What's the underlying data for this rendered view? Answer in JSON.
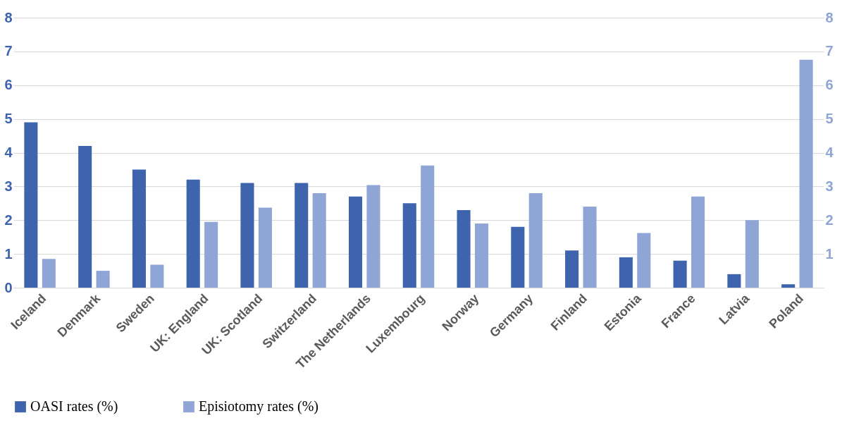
{
  "chart_data": {
    "type": "bar",
    "categories": [
      "Iceland",
      "Denmark",
      "Sweden",
      "UK: England",
      "UK: Scotland",
      "Switzerland",
      "The Netherlands",
      "Luxembourg",
      "Norway",
      "Germany",
      "Finland",
      "Estonia",
      "France",
      "Latvia",
      "Poland"
    ],
    "series": [
      {
        "name": "OASI rates (%)",
        "color": "#3f64ae",
        "values": [
          4.9,
          4.2,
          3.5,
          3.2,
          3.1,
          3.1,
          2.7,
          2.5,
          2.3,
          1.8,
          1.1,
          0.9,
          0.8,
          0.4,
          0.1
        ]
      },
      {
        "name": "Episiotomy rates (%)",
        "color": "#8fa5d6",
        "axis": "y2",
        "values": [
          0.85,
          0.5,
          0.68,
          1.95,
          2.37,
          2.8,
          3.04,
          3.62,
          1.9,
          2.8,
          2.4,
          1.62,
          2.7,
          2.0,
          6.75
        ]
      }
    ],
    "ylim": [
      0,
      8
    ],
    "yticks": [
      0,
      1,
      2,
      3,
      4,
      5,
      6,
      7,
      8
    ],
    "y2lim": [
      0,
      8
    ],
    "y2ticks": [
      1,
      2,
      3,
      4,
      5,
      6,
      7,
      8
    ],
    "grid": "y",
    "legend": "bottom"
  }
}
